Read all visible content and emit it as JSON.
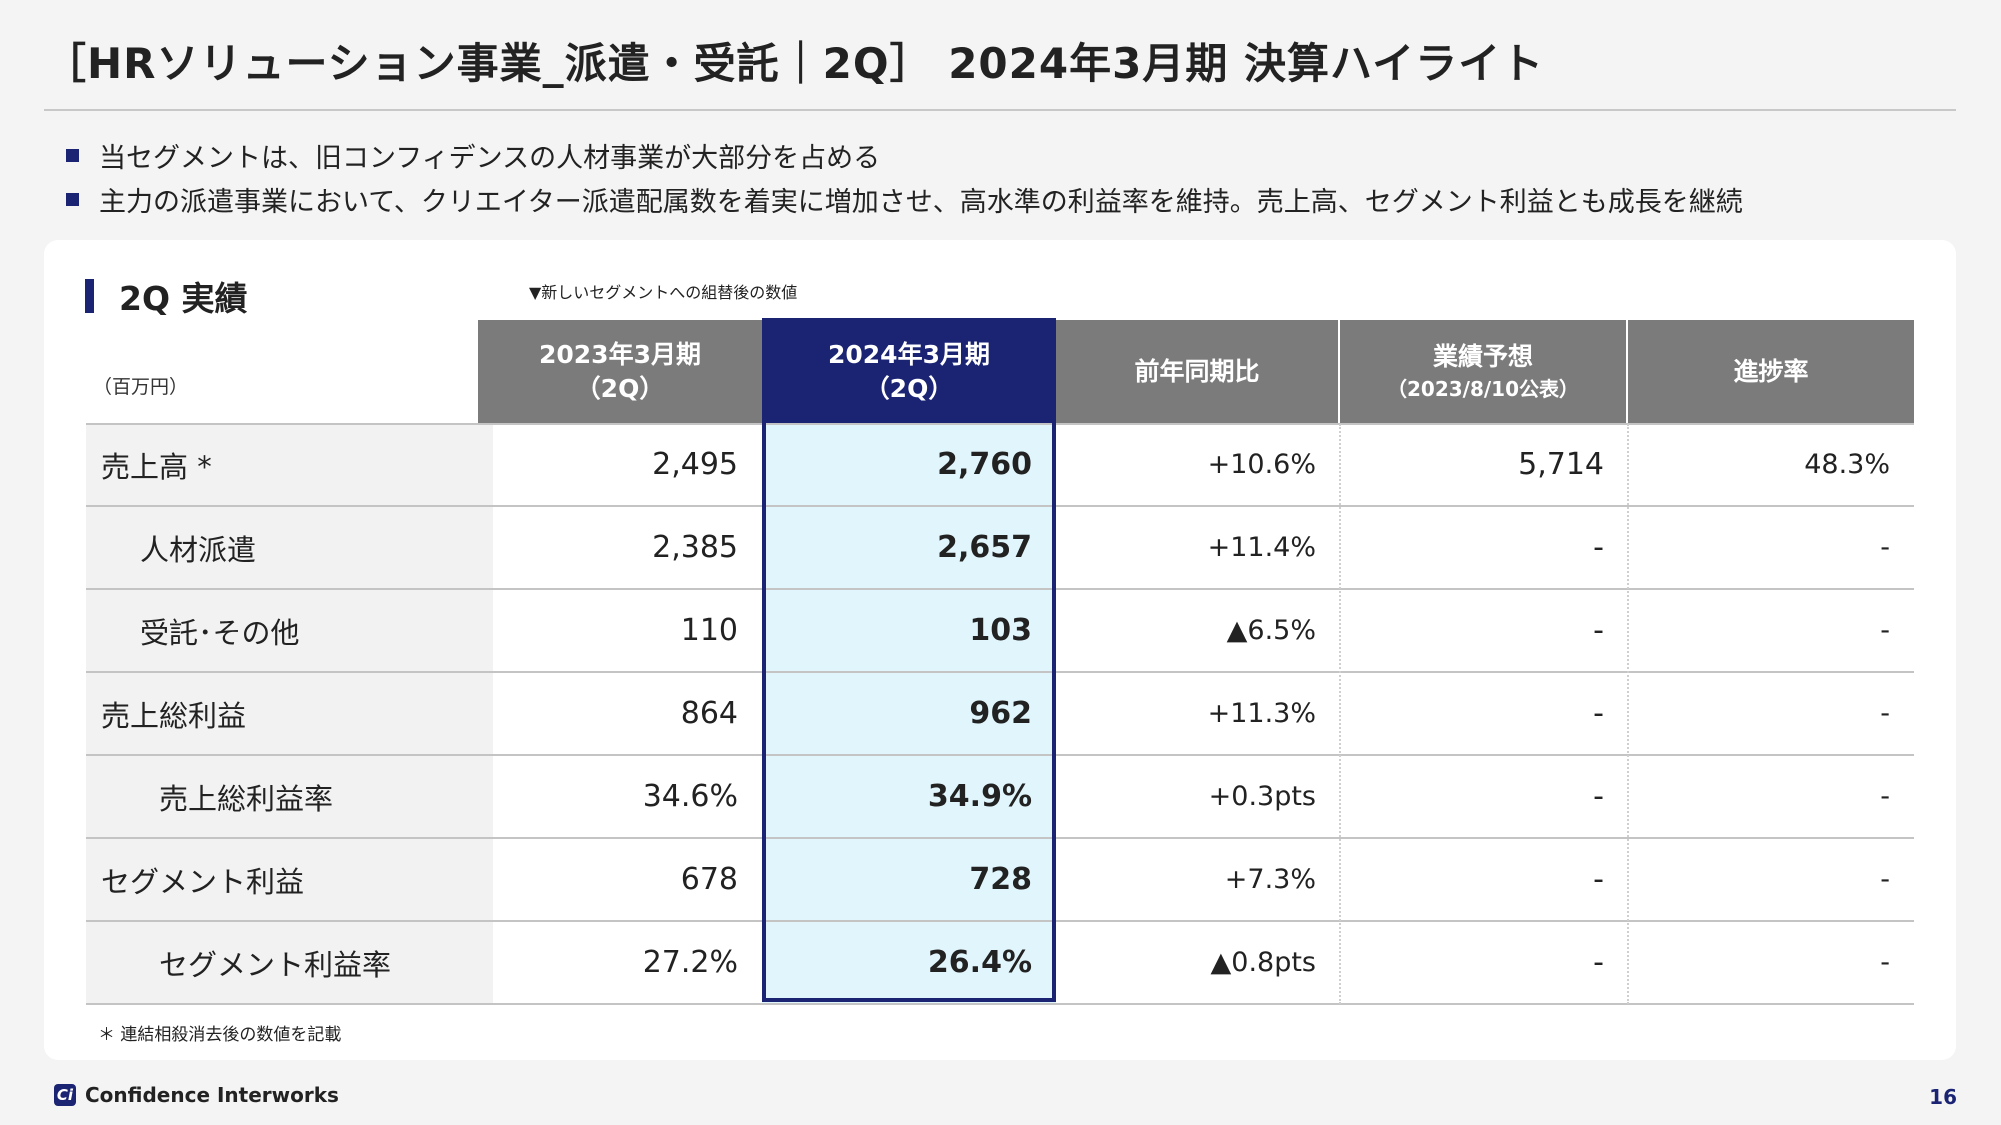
{
  "title": "［HRソリューション事業_派遣・受託｜2Q］ 2024年3月期 決算ハイライト",
  "bullets": [
    "当セグメントは、旧コンフィデンスの人材事業が大部分を占める",
    "主力の派遣事業において、クリエイター派遣配属数を着実に増加させ、高水準の利益率を維持。売上高、セグメント利益とも成長を継続"
  ],
  "section_title": "2Q 実績",
  "note": "▼新しいセグメントへの組替後の数値",
  "unit": "（百万円）",
  "table": {
    "headers": [
      {
        "line1": "2023年3月期",
        "line2": "（2Q）"
      },
      {
        "line1": "2024年3月期",
        "line2": "（2Q）"
      },
      {
        "line1": "前年同期比",
        "line2": ""
      },
      {
        "line1": "業績予想",
        "line2": "（2023/8/10公表）"
      },
      {
        "line1": "進捗率",
        "line2": ""
      }
    ],
    "rows": [
      {
        "label": "売上高 *",
        "prev": "2,495",
        "curr": "2,760",
        "yoy": "+10.6%",
        "forecast": "5,714",
        "progress": "48.3%"
      },
      {
        "label": "人材派遣",
        "prev": "2,385",
        "curr": "2,657",
        "yoy": "+11.4%",
        "forecast": "-",
        "progress": "-"
      },
      {
        "label": "受託･その他",
        "prev": "110",
        "curr": "103",
        "yoy": "▲6.5%",
        "forecast": "-",
        "progress": "-"
      },
      {
        "label": "売上総利益",
        "prev": "864",
        "curr": "962",
        "yoy": "+11.3%",
        "forecast": "-",
        "progress": "-"
      },
      {
        "label": "売上総利益率",
        "prev": "34.6%",
        "curr": "34.9%",
        "yoy": "+0.3pts",
        "forecast": "-",
        "progress": "-"
      },
      {
        "label": "セグメント利益",
        "prev": "678",
        "curr": "728",
        "yoy": "+7.3%",
        "forecast": "-",
        "progress": "-"
      },
      {
        "label": "セグメント利益率",
        "prev": "27.2%",
        "curr": "26.4%",
        "yoy": "▲0.8pts",
        "forecast": "-",
        "progress": "-"
      }
    ]
  },
  "footnote": "＊ 連結相殺消去後の数値を記載",
  "logo": {
    "mark": "Ci",
    "name": "Confidence Interworks"
  },
  "page_number": "16",
  "colors": {
    "accent": "#1a2473",
    "header_gray": "#7b7b7b",
    "highlight": "#e1f6fc"
  }
}
